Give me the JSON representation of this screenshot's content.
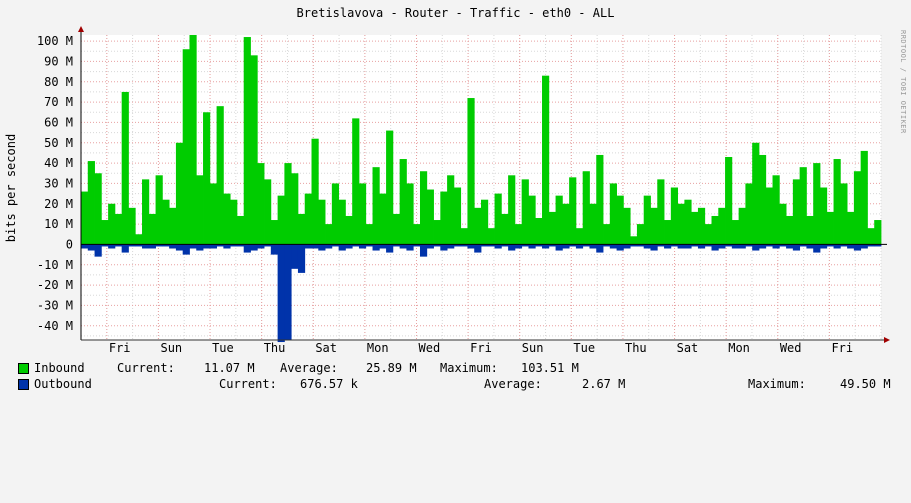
{
  "title": "Bretislavova - Router - Traffic - eth0 - ALL",
  "watermark": "RRDTOOL / TOBI OETIKER",
  "colors": {
    "inbound": "#00cc00",
    "outbound": "#0033aa",
    "grid_major": "#e8a0a0",
    "grid_minor": "#d8d8d8",
    "canvas": "#ffffff",
    "background": "#f3f3f3",
    "axis": "#333333",
    "arrow": "#a00000"
  },
  "legend": [
    {
      "name": "Inbound",
      "current_label": "Current:",
      "current": "11.07 M",
      "average_label": "Average:",
      "average": "25.89 M",
      "maximum_label": "Maximum:",
      "maximum": "103.51 M"
    },
    {
      "name": "Outbound",
      "current_label": "Current:",
      "current": "676.57 k",
      "average_label": "Average:",
      "average": "2.67 M",
      "maximum_label": "Maximum:",
      "maximum": "49.50 M"
    }
  ],
  "chart_data": {
    "type": "area",
    "ylabel": "bits per second",
    "ylim": [
      -47,
      103
    ],
    "yticks": [
      {
        "v": 100,
        "label": "100 M"
      },
      {
        "v": 90,
        "label": "90 M"
      },
      {
        "v": 80,
        "label": "80 M"
      },
      {
        "v": 70,
        "label": "70 M"
      },
      {
        "v": 60,
        "label": "60 M"
      },
      {
        "v": 50,
        "label": "50 M"
      },
      {
        "v": 40,
        "label": "40 M"
      },
      {
        "v": 30,
        "label": "30 M"
      },
      {
        "v": 20,
        "label": "20 M"
      },
      {
        "v": 10,
        "label": "10 M"
      },
      {
        "v": 0,
        "label": "0"
      },
      {
        "v": -10,
        "label": "-10 M"
      },
      {
        "v": -20,
        "label": "-20 M"
      },
      {
        "v": -30,
        "label": "-30 M"
      },
      {
        "v": -40,
        "label": "-40 M"
      }
    ],
    "xlabels": [
      "Fri",
      "Sun",
      "Tue",
      "Thu",
      "Sat",
      "Mon",
      "Wed",
      "Fri",
      "Sun",
      "Tue",
      "Thu",
      "Sat",
      "Mon",
      "Wed",
      "Fri"
    ],
    "x_days": 31,
    "x_label_offset_days": 1,
    "day_lines": 31,
    "series": [
      {
        "name": "Inbound",
        "values": [
          26,
          41,
          35,
          12,
          20,
          15,
          75,
          18,
          5,
          32,
          15,
          34,
          22,
          18,
          50,
          96,
          103,
          34,
          65,
          30,
          68,
          25,
          22,
          14,
          102,
          93,
          40,
          32,
          12,
          24,
          40,
          35,
          15,
          25,
          52,
          22,
          10,
          30,
          22,
          14,
          62,
          30,
          10,
          38,
          25,
          56,
          15,
          42,
          30,
          10,
          36,
          27,
          12,
          26,
          34,
          28,
          8,
          72,
          18,
          22,
          8,
          25,
          15,
          34,
          10,
          32,
          24,
          13,
          83,
          16,
          24,
          20,
          33,
          8,
          36,
          20,
          44,
          10,
          30,
          24,
          18,
          4,
          10,
          24,
          18,
          32,
          12,
          28,
          20,
          22,
          16,
          18,
          10,
          14,
          18,
          43,
          12,
          18,
          30,
          50,
          44,
          28,
          34,
          20,
          14,
          32,
          38,
          14,
          40,
          28,
          16,
          42,
          30,
          16,
          36,
          46,
          8,
          12
        ]
      },
      {
        "name": "Outbound",
        "values": [
          -2,
          -3,
          -6,
          -1,
          -2,
          -1,
          -4,
          -1,
          -1,
          -2,
          -2,
          -1,
          -1,
          -2,
          -3,
          -5,
          -2,
          -3,
          -2,
          -2,
          -1,
          -2,
          -1,
          -1,
          -4,
          -3,
          -2,
          -1,
          -5,
          -48,
          -47,
          -12,
          -14,
          -2,
          -2,
          -3,
          -2,
          -1,
          -3,
          -2,
          -1,
          -2,
          -1,
          -3,
          -2,
          -4,
          -1,
          -2,
          -3,
          -1,
          -6,
          -2,
          -1,
          -3,
          -2,
          -1,
          -1,
          -2,
          -4,
          -1,
          -1,
          -2,
          -1,
          -3,
          -2,
          -1,
          -2,
          -1,
          -2,
          -1,
          -3,
          -2,
          -1,
          -2,
          -1,
          -2,
          -4,
          -1,
          -2,
          -3,
          -2,
          -1,
          -1,
          -2,
          -3,
          -1,
          -2,
          -1,
          -2,
          -2,
          -1,
          -2,
          -1,
          -3,
          -2,
          -1,
          -2,
          -2,
          -1,
          -3,
          -2,
          -1,
          -2,
          -1,
          -2,
          -3,
          -1,
          -2,
          -4,
          -2,
          -1,
          -2,
          -1,
          -2,
          -3,
          -2,
          -1,
          -1
        ]
      }
    ]
  }
}
